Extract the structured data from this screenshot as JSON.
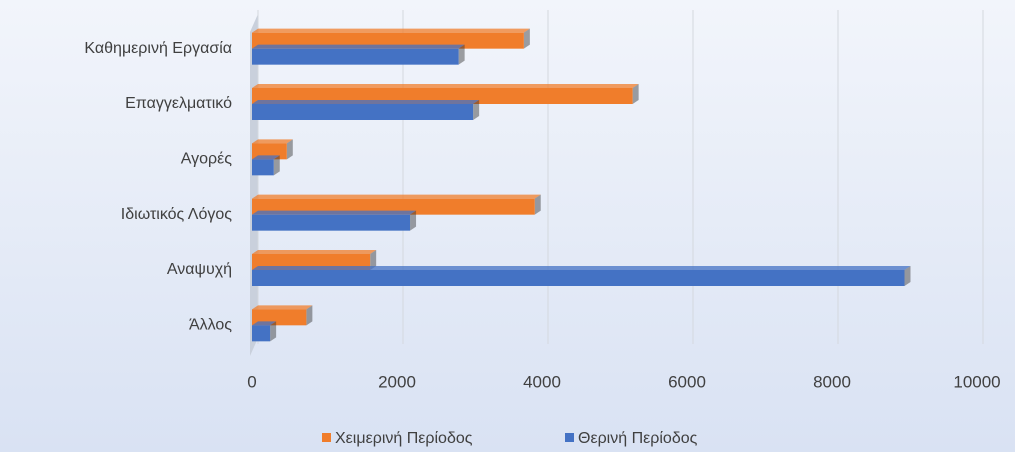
{
  "chart_data": {
    "type": "hbar",
    "categories": [
      "Καθημερινή Εργασία",
      "Επαγγελματικό",
      "Αγορές",
      "Ιδιωτικός Λόγος",
      "Αναψυχή",
      "Άλλος"
    ],
    "series": [
      {
        "name": "Χειμερινή Περίοδος",
        "color": "#f07d2b",
        "values": [
          3750,
          5250,
          480,
          3900,
          1630,
          750
        ]
      },
      {
        "name": "Θερινή Περίοδος",
        "color": "#4472c4",
        "values": [
          2850,
          3050,
          300,
          2180,
          9000,
          250
        ]
      }
    ],
    "xlim": [
      0,
      10000
    ],
    "xticks": [
      0,
      2000,
      4000,
      6000,
      8000,
      10000
    ],
    "grid": true,
    "legend": "bottom"
  }
}
